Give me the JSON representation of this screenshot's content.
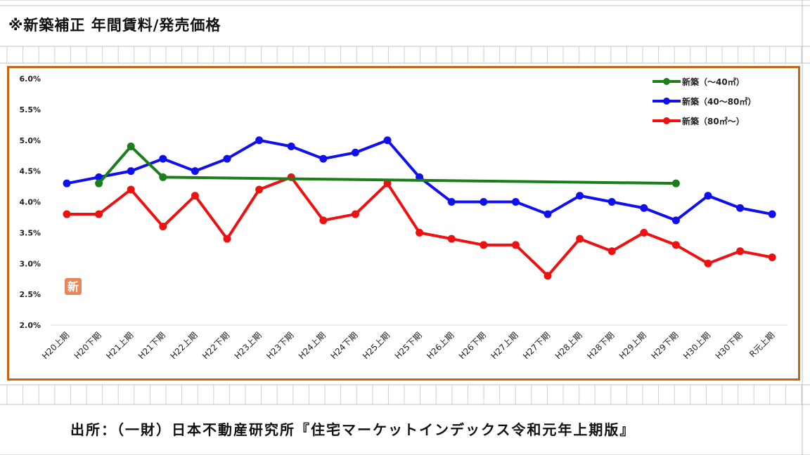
{
  "page": {
    "title": "※新築補正 年間賃料/発売価格",
    "source": "出所：（一財）日本不動産研究所『住宅マーケットインデックス令和元年上期版』",
    "badge": "新"
  },
  "colors": {
    "frame": "#c8640e",
    "green": "#1a7f1a",
    "blue": "#1010ee",
    "red": "#ee1111",
    "badge_bg": "#e8855a"
  },
  "chart_data": {
    "type": "line",
    "categories": [
      "H20上期",
      "H20下期",
      "H21上期",
      "H21下期",
      "H22上期",
      "H22下期",
      "H23上期",
      "H23下期",
      "H24上期",
      "H24下期",
      "H25上期",
      "H25下期",
      "H26上期",
      "H26下期",
      "H27上期",
      "H27下期",
      "H28上期",
      "H28下期",
      "H29上期",
      "H29下期",
      "H30上期",
      "H30下期",
      "R元上期"
    ],
    "y_ticks": [
      "6.0%",
      "5.5%",
      "5.0%",
      "4.5%",
      "4.0%",
      "3.5%",
      "3.0%",
      "2.5%",
      "2.0%"
    ],
    "ylim": [
      2.0,
      6.0
    ],
    "legend_position": "top-right",
    "series": [
      {
        "name": "新築（～40㎡）",
        "color": "#1a7f1a",
        "points": [
          [
            1,
            4.3
          ],
          [
            2,
            4.9
          ],
          [
            3,
            4.4
          ],
          [
            19,
            4.3
          ]
        ],
        "markers": [
          1,
          2,
          3,
          19
        ]
      },
      {
        "name": "新築（40～80㎡）",
        "color": "#1010ee",
        "values": [
          4.3,
          4.4,
          4.5,
          4.7,
          4.5,
          4.7,
          5.0,
          4.9,
          4.7,
          4.8,
          5.0,
          4.4,
          4.0,
          4.0,
          4.0,
          3.8,
          4.1,
          4.0,
          3.9,
          3.7,
          4.1,
          3.9,
          3.8
        ]
      },
      {
        "name": "新築（80㎡～）",
        "color": "#ee1111",
        "values": [
          3.8,
          3.8,
          4.2,
          3.6,
          4.1,
          3.4,
          4.2,
          4.4,
          3.7,
          3.8,
          4.3,
          3.5,
          3.4,
          3.3,
          3.3,
          2.8,
          3.4,
          3.2,
          3.5,
          3.3,
          3.0,
          3.2,
          3.1
        ]
      }
    ]
  }
}
